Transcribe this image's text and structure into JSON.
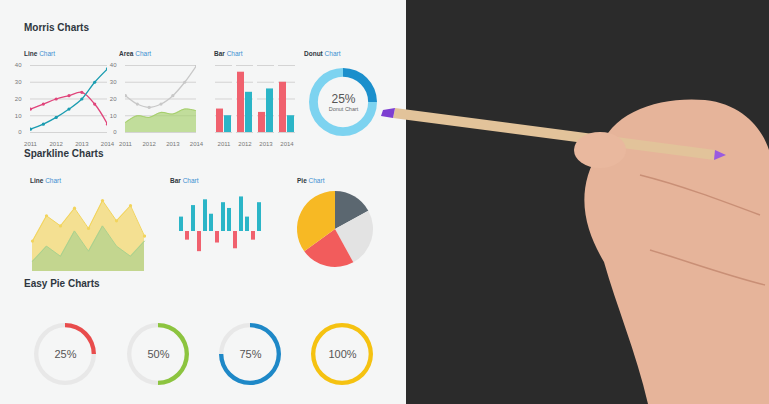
{
  "headings": [
    "Morris Charts",
    "Sparkline Charts",
    "Easy Pie Charts"
  ],
  "chart_data": [
    {
      "type": "line",
      "title": "Line Chart",
      "x": [
        2011,
        2011.5,
        2012,
        2012.5,
        2013,
        2013.5,
        2014
      ],
      "series": [
        {
          "color": "#e0457b",
          "values": [
            14,
            17,
            20,
            22,
            24,
            17,
            5
          ],
          "marker": "circle"
        },
        {
          "color": "#1a9cb0",
          "values": [
            2,
            5,
            9,
            14,
            20,
            30,
            38
          ],
          "marker": "circle"
        }
      ],
      "xlim": [
        2011,
        2014
      ],
      "xticks": [
        2011,
        2012,
        2013,
        2014
      ],
      "ylim": [
        0,
        40
      ],
      "yticks": [
        0,
        10,
        20,
        30,
        40
      ],
      "grid": true
    },
    {
      "type": "line",
      "title": "Area Chart",
      "x": [
        2011,
        2011.5,
        2012,
        2012.5,
        2013,
        2013.5,
        2014
      ],
      "series": [
        {
          "type": "area",
          "color": "#a5cf6a",
          "values": [
            6,
            10,
            9,
            12,
            11,
            14,
            13
          ]
        },
        {
          "type": "line",
          "color": "#c8c8c8",
          "values": [
            22,
            17,
            15,
            17,
            22,
            30,
            40
          ],
          "marker": "circle"
        }
      ],
      "xlim": [
        2011,
        2014
      ],
      "xticks": [
        2011,
        2012,
        2013,
        2014
      ],
      "ylim": [
        0,
        40
      ],
      "yticks": [
        0,
        10,
        20,
        30,
        40
      ],
      "grid": true
    },
    {
      "type": "bar",
      "title": "Bar Chart",
      "categories": [
        "2011",
        "2012",
        "2013",
        "2014"
      ],
      "series": [
        {
          "color": "#f0616e",
          "values": [
            14,
            36,
            12,
            30
          ]
        },
        {
          "color": "#2bb5c7",
          "values": [
            10,
            24,
            26,
            10
          ]
        }
      ],
      "ylim": [
        0,
        40
      ],
      "yticks": [
        0,
        10,
        20,
        30,
        40
      ],
      "grid": true,
      "tick_labels": "x"
    },
    {
      "type": "donut",
      "title": "Donut Chart",
      "subtitle": "Donut Chart",
      "categories": [
        null,
        null
      ],
      "values": [
        25,
        75
      ],
      "value_labels": [
        "25%",
        null
      ],
      "colors": [
        "#1b8fcc",
        "#7dd3f0"
      ],
      "data_labels": true
    },
    {
      "type": "area",
      "title": "Line Chart",
      "categories": [
        null,
        null,
        null,
        null,
        null,
        null,
        null,
        null,
        null
      ],
      "series": [
        {
          "color": "#f2d45c",
          "values": [
            12,
            22,
            18,
            25,
            17,
            28,
            20,
            26,
            14
          ],
          "marker": "circle"
        },
        {
          "color": "#a9d18e",
          "values": [
            4,
            10,
            6,
            16,
            8,
            18,
            10,
            6,
            12
          ]
        }
      ],
      "ylim": [
        0,
        30
      ],
      "tick_labels": false
    },
    {
      "type": "bar",
      "title": "Bar Chart",
      "categories": [
        null,
        null,
        null,
        null,
        null,
        null,
        null,
        null,
        null,
        null,
        null,
        null,
        null,
        null
      ],
      "values": [
        10,
        -6,
        18,
        -14,
        22,
        12,
        -8,
        20,
        16,
        -12,
        24,
        10,
        -6,
        20
      ],
      "colors": [
        "#2bb5c7",
        "#f0616e",
        "#2bb5c7",
        "#f0616e",
        "#2bb5c7",
        "#2bb5c7",
        "#f0616e",
        "#2bb5c7",
        "#2bb5c7",
        "#f0616e",
        "#2bb5c7",
        "#2bb5c7",
        "#f0616e",
        "#2bb5c7"
      ],
      "ylim": [
        -25,
        25
      ],
      "tick_labels": false
    },
    {
      "type": "pie",
      "title": "Pie Chart",
      "categories": [
        null,
        null,
        null,
        null
      ],
      "values": [
        17,
        25,
        23,
        35
      ],
      "colors": [
        "#5b6770",
        "#e3e3e3",
        "#f25c5c",
        "#f7b924"
      ]
    },
    {
      "type": "donut",
      "categories": [
        null,
        null
      ],
      "values": [
        25,
        75
      ],
      "value_labels": [
        "25%",
        null
      ],
      "colors": [
        "#e84c4c",
        "#e8e8e8"
      ],
      "data_labels": true
    },
    {
      "type": "donut",
      "categories": [
        null,
        null
      ],
      "values": [
        50,
        50
      ],
      "value_labels": [
        "50%",
        null
      ],
      "colors": [
        "#8cc43f",
        "#e8e8e8"
      ],
      "data_labels": true
    },
    {
      "type": "donut",
      "categories": [
        null,
        null
      ],
      "values": [
        75,
        25
      ],
      "value_labels": [
        "75%",
        null
      ],
      "colors": [
        "#1e88c7",
        "#e8e8e8"
      ],
      "data_labels": true
    },
    {
      "type": "donut",
      "categories": [
        null,
        null
      ],
      "values": [
        100,
        0
      ],
      "value_labels": [
        "100%",
        null
      ],
      "colors": [
        "#f5c211",
        "#e8e8e8"
      ],
      "data_labels": true
    }
  ]
}
